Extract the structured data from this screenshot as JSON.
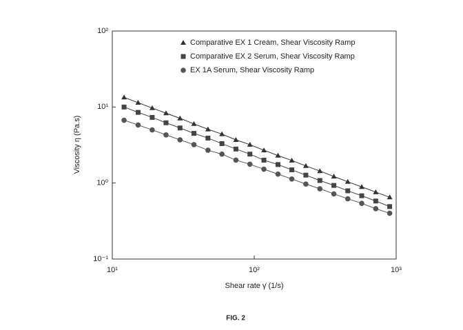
{
  "chart_data": {
    "type": "line",
    "xlabel": "Shear rate  γ̇  (1/s)",
    "ylabel": "Viscosity  η  (Pa.s)",
    "caption": "FIG. 2",
    "xscale": "log",
    "yscale": "log",
    "xlim": [
      10,
      1000
    ],
    "ylim": [
      0.1,
      100
    ],
    "xticks": [
      {
        "value": 10,
        "label": "10¹"
      },
      {
        "value": 100,
        "label": "10²"
      },
      {
        "value": 1000,
        "label": "10³"
      }
    ],
    "yticks": [
      {
        "value": 0.1,
        "label": "10⁻¹"
      },
      {
        "value": 1,
        "label": "10⁰"
      },
      {
        "value": 10,
        "label": "10¹"
      },
      {
        "value": 100,
        "label": "10²"
      }
    ],
    "legend": "upper left",
    "x": [
      12.1,
      15.2,
      19.1,
      23.9,
      30.0,
      37.6,
      47.2,
      59.2,
      74.3,
      93.2,
      117,
      147,
      184,
      231,
      290,
      364,
      456,
      572,
      718,
      900
    ],
    "series": [
      {
        "name": "Comparative EX 1 Cream, Shear Viscosity Ramp",
        "color": "#333333",
        "marker": "triangle",
        "values": [
          13.4,
          11.4,
          9.7,
          8.3,
          7.1,
          6.0,
          5.1,
          4.4,
          3.7,
          3.2,
          2.7,
          2.3,
          1.98,
          1.68,
          1.44,
          1.22,
          1.04,
          0.89,
          0.76,
          0.65
        ]
      },
      {
        "name": "Comparative EX 2 Serum, Shear Viscosity Ramp",
        "color": "#444444",
        "marker": "square",
        "values": [
          10,
          8.5,
          7.3,
          6.2,
          5.3,
          4.5,
          3.9,
          3.3,
          2.8,
          2.4,
          2.0,
          1.75,
          1.49,
          1.27,
          1.08,
          0.93,
          0.79,
          0.68,
          0.58,
          0.49
        ]
      },
      {
        "name": "EX 1A Serum, Shear Viscosity Ramp",
        "color": "#555555",
        "marker": "circle",
        "values": [
          6.7,
          5.8,
          5.0,
          4.3,
          3.7,
          3.2,
          2.7,
          2.4,
          2.0,
          1.77,
          1.52,
          1.31,
          1.13,
          0.97,
          0.84,
          0.72,
          0.62,
          0.54,
          0.46,
          0.4
        ]
      }
    ]
  }
}
